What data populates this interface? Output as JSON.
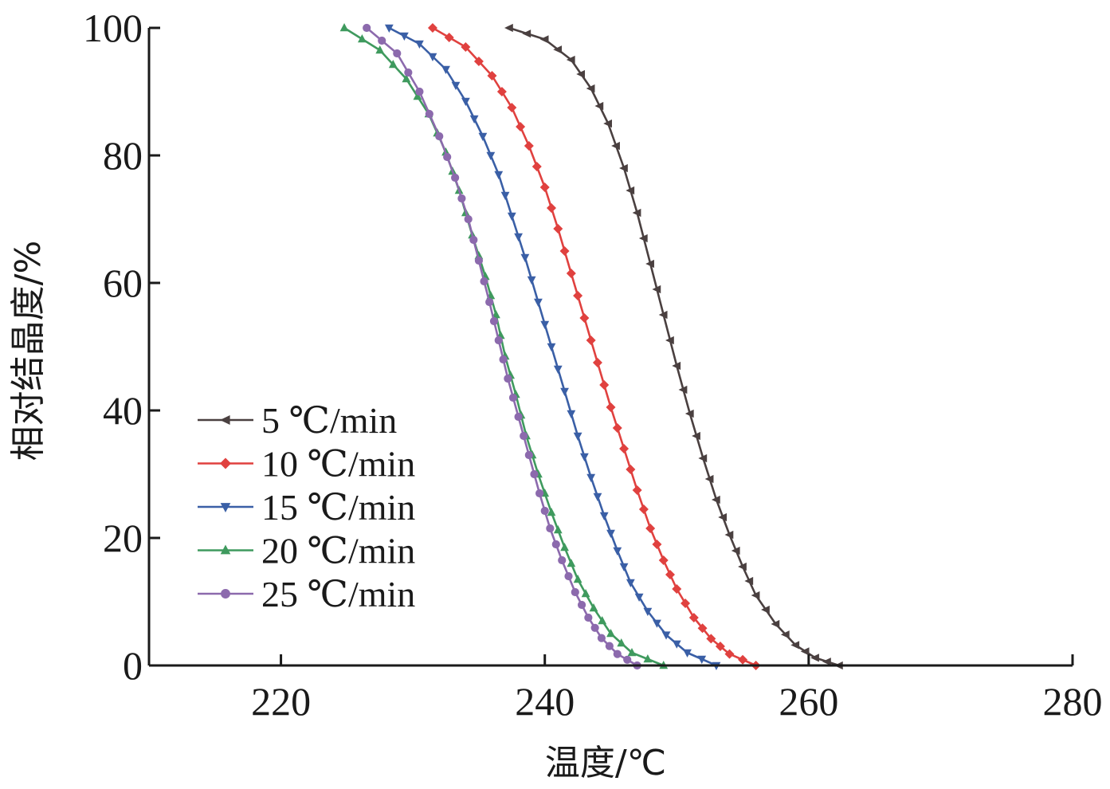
{
  "chart_data": {
    "type": "line",
    "xlabel": "温度/℃",
    "ylabel": "相对结晶度/%",
    "xlim": [
      210,
      280
    ],
    "ylim": [
      0,
      100
    ],
    "xticks": [
      220,
      240,
      260,
      280
    ],
    "yticks": [
      0,
      20,
      40,
      60,
      80,
      100
    ],
    "xtick_labels": [
      "220",
      "240",
      "260",
      "280"
    ],
    "ytick_labels": [
      "0",
      "20",
      "40",
      "60",
      "80",
      "100"
    ],
    "grid": false,
    "legend_position": "bottom-left",
    "series": [
      {
        "name": "5 ℃/min",
        "color": "#4a4040",
        "marker": "triangle-left",
        "x": [
          237.3,
          240.0,
          242.0,
          243.5,
          244.8,
          246.0,
          247.0,
          248.0,
          249.0,
          250.0,
          251.0,
          252.0,
          253.0,
          254.0,
          255.0,
          256.0,
          257.5,
          259.0,
          260.5,
          262.3
        ],
        "y": [
          100,
          98.2,
          95.0,
          90.5,
          85.0,
          78.0,
          71.0,
          63.0,
          55.0,
          47.0,
          39.5,
          32.5,
          26.0,
          20.5,
          15.5,
          11.0,
          6.5,
          3.2,
          1.2,
          0
        ]
      },
      {
        "name": "10 ℃/min",
        "color": "#e0413f",
        "marker": "diamond",
        "x": [
          231.5,
          234.0,
          236.0,
          237.5,
          238.8,
          240.0,
          241.0,
          242.0,
          243.0,
          244.0,
          245.0,
          246.0,
          247.0,
          248.0,
          249.0,
          250.0,
          251.3,
          252.6,
          254.0,
          256.0
        ],
        "y": [
          100,
          97.0,
          92.5,
          87.5,
          81.5,
          75.0,
          68.5,
          61.5,
          54.5,
          47.5,
          40.5,
          34.0,
          27.5,
          21.5,
          16.5,
          12.0,
          7.5,
          4.2,
          1.8,
          0
        ]
      },
      {
        "name": "15 ℃/min",
        "color": "#3a5fa6",
        "marker": "triangle-down",
        "x": [
          228.2,
          230.5,
          232.5,
          234.0,
          235.3,
          236.5,
          237.5,
          238.5,
          239.5,
          240.5,
          241.5,
          242.5,
          243.5,
          244.5,
          245.5,
          246.5,
          247.8,
          249.2,
          250.8,
          253.0
        ],
        "y": [
          100,
          97.5,
          93.5,
          88.5,
          83.0,
          77.0,
          70.5,
          64.0,
          57.0,
          50.0,
          43.0,
          36.0,
          29.5,
          23.5,
          18.0,
          13.0,
          8.5,
          4.8,
          2.0,
          0
        ]
      },
      {
        "name": "20 ℃/min",
        "color": "#3f9a5e",
        "marker": "triangle-up",
        "x": [
          224.8,
          227.5,
          229.5,
          231.2,
          232.5,
          233.5,
          234.5,
          235.5,
          236.3,
          237.0,
          237.8,
          238.6,
          239.5,
          240.5,
          241.5,
          242.5,
          243.7,
          245.0,
          246.6,
          249.0
        ],
        "y": [
          100,
          96.5,
          92.0,
          86.5,
          80.5,
          74.5,
          67.5,
          61.0,
          55.0,
          48.5,
          42.5,
          36.0,
          30.0,
          24.0,
          18.5,
          13.5,
          9.0,
          5.0,
          2.0,
          0
        ]
      },
      {
        "name": "25 ℃/min",
        "color": "#8c6aad",
        "marker": "circle",
        "x": [
          226.5,
          228.8,
          230.5,
          232.0,
          233.2,
          234.2,
          235.0,
          235.8,
          236.5,
          237.2,
          238.0,
          238.8,
          239.6,
          240.4,
          241.3,
          242.3,
          243.3,
          244.3,
          245.5,
          247.0
        ],
        "y": [
          100,
          96.0,
          90.0,
          83.0,
          76.5,
          70.0,
          63.5,
          57.0,
          51.0,
          45.0,
          39.0,
          33.0,
          27.0,
          21.5,
          16.5,
          11.5,
          7.5,
          4.3,
          1.8,
          0
        ]
      }
    ]
  }
}
